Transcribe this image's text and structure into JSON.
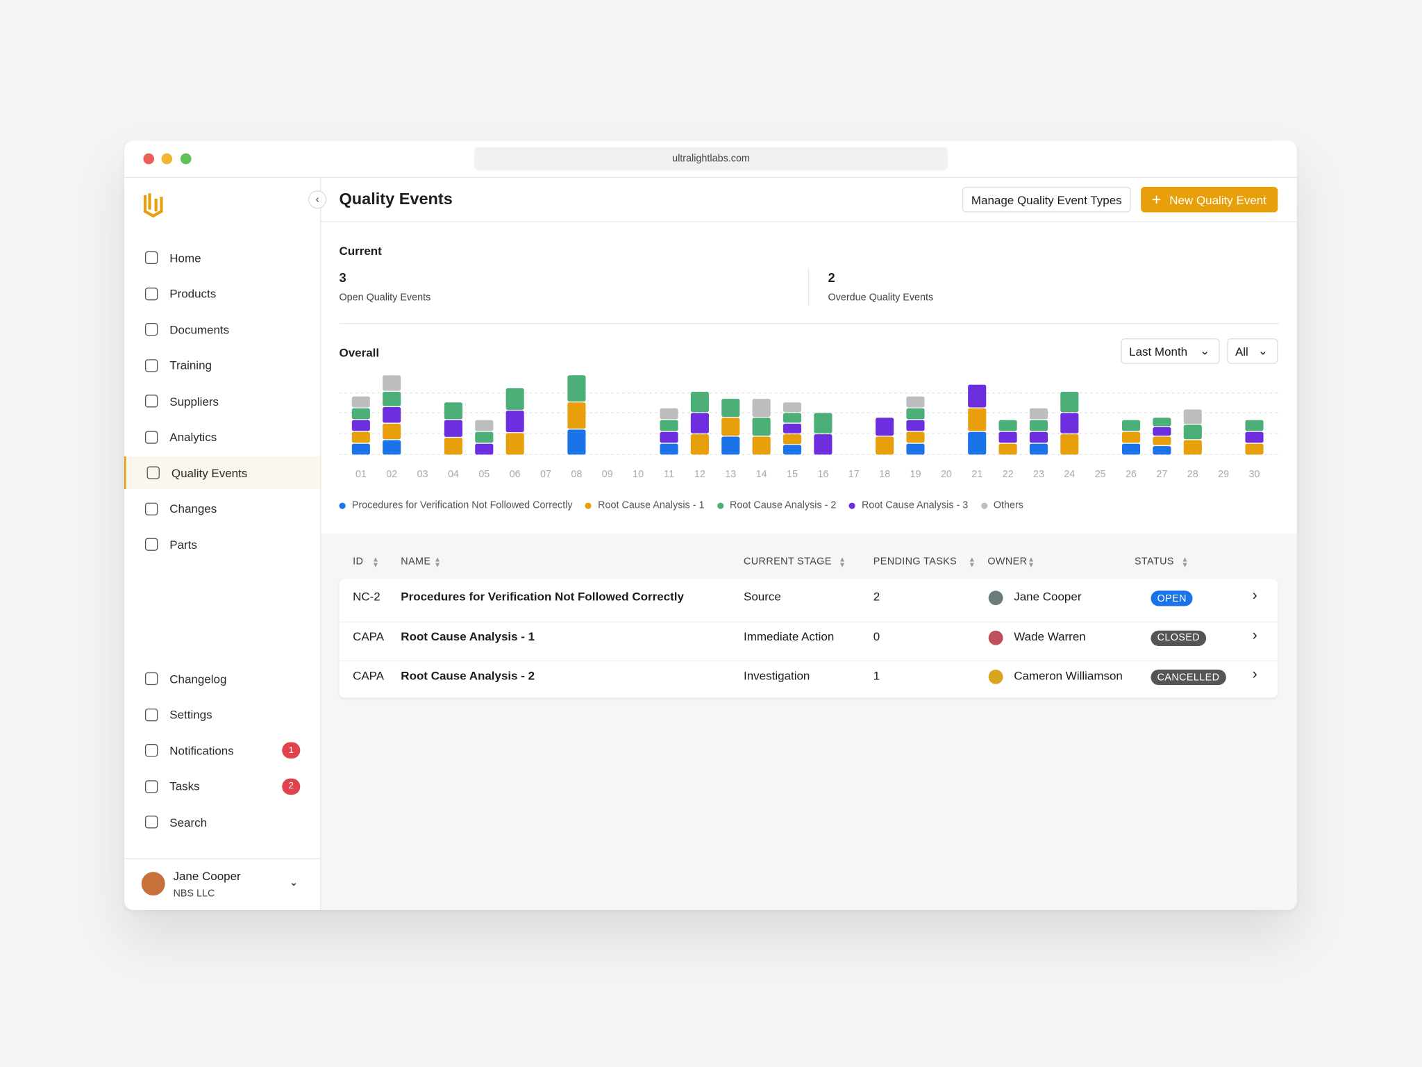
{
  "browser": {
    "url": "ultralightlabs.com"
  },
  "sidebar": {
    "nav": [
      {
        "label": "Home"
      },
      {
        "label": "Products"
      },
      {
        "label": "Documents"
      },
      {
        "label": "Training"
      },
      {
        "label": "Suppliers"
      },
      {
        "label": "Analytics"
      },
      {
        "label": "Quality Events",
        "active": true
      },
      {
        "label": "Changes"
      },
      {
        "label": "Parts"
      }
    ],
    "bottom_nav": [
      {
        "label": "Changelog"
      },
      {
        "label": "Settings"
      },
      {
        "label": "Notifications",
        "badge": 1
      },
      {
        "label": "Tasks",
        "badge": 2
      },
      {
        "label": "Search"
      }
    ],
    "user": {
      "name": "Jane Cooper",
      "org": "NBS LLC"
    }
  },
  "header": {
    "title": "Quality Events",
    "secondary_button": "Manage Quality Event Types",
    "primary_button": "New Quality Event"
  },
  "current": {
    "title": "Current",
    "stats": [
      {
        "value": 3,
        "label": "Open Quality Events"
      },
      {
        "value": 2,
        "label": "Overdue Quality Events"
      }
    ]
  },
  "overall": {
    "title": "Overall",
    "filters": [
      "Last Month",
      "All"
    ]
  },
  "chart_data": {
    "type": "stacked_bar",
    "categories": [
      "01",
      "02",
      "03",
      "04",
      "05",
      "06",
      "07",
      "08",
      "09",
      "10",
      "11",
      "12",
      "13",
      "14",
      "15",
      "16",
      "17",
      "18",
      "19",
      "20",
      "21",
      "22",
      "23",
      "24",
      "25",
      "26",
      "27",
      "28",
      "29",
      "30"
    ],
    "ylim": [
      0,
      8
    ],
    "stack_order": [
      0,
      1,
      3,
      2,
      4
    ],
    "series": [
      {
        "name": "Procedures for Verification Not Followed Correctly",
        "color": "#1a73e8",
        "values": [
          1,
          1.3,
          0,
          0,
          0,
          0,
          0,
          2.2,
          0,
          0,
          1,
          0,
          1.6,
          0,
          0.9,
          0,
          0,
          0,
          1,
          0,
          2,
          0,
          1,
          0,
          0,
          1,
          0.8,
          0,
          0,
          0
        ]
      },
      {
        "name": "Root Cause Analysis - 1",
        "color": "#e89f0c",
        "values": [
          1,
          1.4,
          0,
          1.5,
          0,
          1.9,
          0,
          2.3,
          0,
          0,
          0,
          1.8,
          1.6,
          1.6,
          0.9,
          0,
          0,
          1.6,
          1,
          0,
          2,
          1,
          0,
          1.8,
          0,
          1,
          0.8,
          1.3,
          0,
          1
        ]
      },
      {
        "name": "Root Cause Analysis - 2",
        "color": "#4caf78",
        "values": [
          1,
          1.3,
          0,
          1.5,
          1,
          1.9,
          0,
          2.3,
          0,
          0,
          1,
          1.8,
          1.6,
          1.6,
          0.9,
          1.8,
          0,
          0,
          1,
          0,
          0,
          1,
          1,
          1.8,
          0,
          1,
          0.8,
          1.3,
          0,
          1
        ]
      },
      {
        "name": "Root Cause Analysis - 3",
        "color": "#6d2ee0",
        "values": [
          1,
          1.4,
          0,
          1.5,
          1,
          1.9,
          0,
          0,
          0,
          0,
          1,
          1.8,
          0,
          0,
          0.9,
          1.8,
          0,
          1.6,
          1,
          0,
          2,
          1,
          1,
          1.8,
          0,
          0,
          0.8,
          0,
          0,
          1
        ]
      },
      {
        "name": "Others",
        "color": "#bdbdbd",
        "values": [
          1,
          1.4,
          0,
          0,
          1,
          0,
          0,
          0,
          0,
          0,
          1,
          0,
          0,
          1.6,
          0.9,
          0,
          0,
          0,
          1,
          0,
          0,
          0,
          1,
          0,
          0,
          0,
          0,
          1.3,
          0,
          0
        ]
      }
    ]
  },
  "table": {
    "columns": [
      "ID",
      "NAME",
      "CURRENT STAGE",
      "PENDING TASKS",
      "OWNER",
      "STATUS"
    ],
    "rows": [
      {
        "id": "NC-2",
        "name": "Procedures for Verification Not Followed Correctly",
        "stage": "Source",
        "pending_tasks": 2,
        "owner": "Jane Cooper",
        "status": "OPEN",
        "status_color": "#1a73e8",
        "avatar_color": "#6b7c7a"
      },
      {
        "id": "CAPA",
        "name": "Root Cause Analysis - 1",
        "stage": "Immediate Action",
        "pending_tasks": 0,
        "owner": "Wade Warren",
        "status": "CLOSED",
        "status_color": "#555555",
        "avatar_color": "#c0505e"
      },
      {
        "id": "CAPA",
        "name": "Root Cause Analysis - 2",
        "stage": "Investigation",
        "pending_tasks": 1,
        "owner": "Cameron Williamson",
        "status": "CANCELLED",
        "status_color": "#555555",
        "avatar_color": "#d9a520"
      }
    ]
  }
}
